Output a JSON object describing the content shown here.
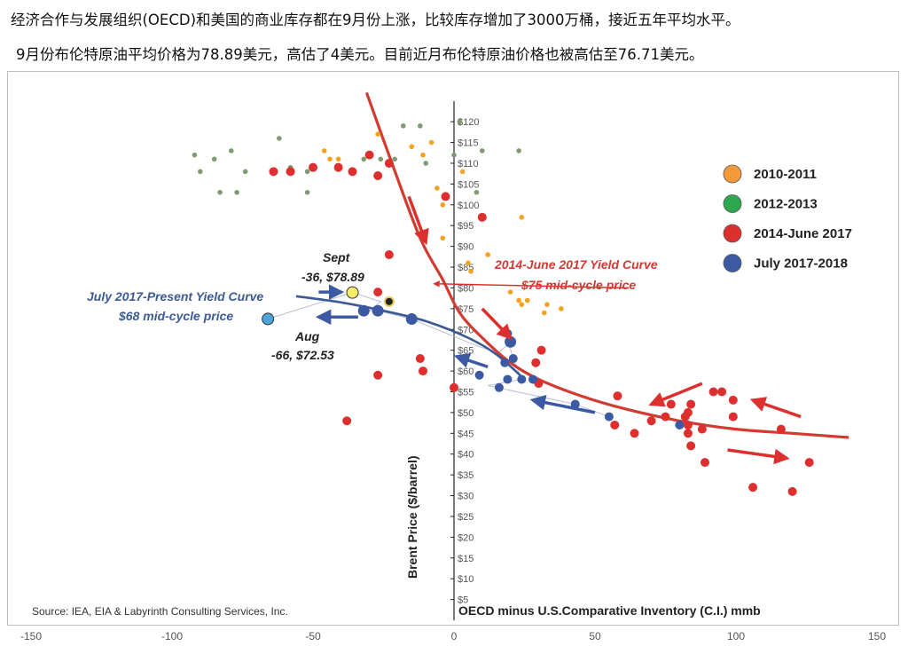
{
  "header": {
    "line1": "经济合作与发展组织(OECD)和美国的商业库存都在9月份上涨，比较库存增加了3000万桶，接近五年平均水平。",
    "line2": "9月份布伦特原油平均价格为78.89美元，高估了4美元。目前近月布伦特原油价格也被高估至76.71美元。"
  },
  "chart_data": {
    "type": "scatter",
    "xlabel": "OECD minus U.S.Comparative Inventory (C.I.) mmb",
    "ylabel": "Brent Price ($/barrel)",
    "source": "Source: IEA, EIA & Labyrinth Consulting Services, Inc.",
    "xlim": [
      -150,
      150
    ],
    "ylim": [
      0,
      125
    ],
    "x_ticks": [
      "-150",
      "-100",
      "-50",
      "0",
      "50",
      "100",
      "150"
    ],
    "y_ticks": [
      "$5",
      "$10",
      "$15",
      "$20",
      "$25",
      "$30",
      "$35",
      "$40",
      "$45",
      "$50",
      "$55",
      "$60",
      "$65",
      "$70",
      "$75",
      "$80",
      "$85",
      "$90",
      "$95",
      "$100",
      "$105",
      "$110",
      "$115",
      "$120"
    ],
    "legend_position": "right",
    "series": [
      {
        "name": "2010-2011",
        "color": "#f5a21e",
        "points": [
          [
            -46,
            113
          ],
          [
            -44,
            111
          ],
          [
            -41,
            111
          ],
          [
            -27,
            117
          ],
          [
            -15,
            114
          ],
          [
            -11,
            112
          ],
          [
            -8,
            115
          ],
          [
            -6,
            104
          ],
          [
            -4,
            100
          ],
          [
            -4,
            92
          ],
          [
            5,
            86
          ],
          [
            6,
            84
          ],
          [
            12,
            88
          ],
          [
            20,
            79
          ],
          [
            23,
            77
          ],
          [
            24,
            76
          ],
          [
            26,
            77
          ],
          [
            33,
            76
          ],
          [
            32,
            74
          ],
          [
            38,
            75
          ],
          [
            24,
            97
          ],
          [
            3,
            108
          ]
        ]
      },
      {
        "name": "2012-2013",
        "color": "#7f9b72",
        "points": [
          [
            -92,
            112
          ],
          [
            -90,
            108
          ],
          [
            -85,
            111
          ],
          [
            -83,
            103
          ],
          [
            -79,
            113
          ],
          [
            -77,
            103
          ],
          [
            -74,
            108
          ],
          [
            -62,
            116
          ],
          [
            -58,
            109
          ],
          [
            -52,
            103
          ],
          [
            -52,
            108
          ],
          [
            -32,
            111
          ],
          [
            -26,
            111
          ],
          [
            -21,
            111
          ],
          [
            -18,
            119
          ],
          [
            -12,
            119
          ],
          [
            -10,
            110
          ],
          [
            0,
            112
          ],
          [
            2,
            120
          ],
          [
            8,
            103
          ],
          [
            10,
            113
          ],
          [
            23,
            113
          ]
        ]
      },
      {
        "name": "2014-June 2017",
        "color": "#de2f2f",
        "points": [
          [
            -64,
            108
          ],
          [
            -58,
            108
          ],
          [
            -50,
            109
          ],
          [
            -41,
            109
          ],
          [
            -36,
            108
          ],
          [
            -30,
            112
          ],
          [
            -27,
            107
          ],
          [
            -23,
            110
          ],
          [
            -3,
            102
          ],
          [
            10,
            97
          ],
          [
            -23,
            88
          ],
          [
            -27,
            79
          ],
          [
            -38,
            48
          ],
          [
            -27,
            59
          ],
          [
            -12,
            63
          ],
          [
            -11,
            60
          ],
          [
            0,
            56
          ],
          [
            29,
            62
          ],
          [
            30,
            57
          ],
          [
            31,
            65
          ],
          [
            58,
            54
          ],
          [
            57,
            47
          ],
          [
            64,
            45
          ],
          [
            70,
            48
          ],
          [
            75,
            49
          ],
          [
            77,
            52
          ],
          [
            82,
            49
          ],
          [
            83,
            50
          ],
          [
            84,
            52
          ],
          [
            83,
            45
          ],
          [
            83,
            47
          ],
          [
            84,
            42
          ],
          [
            88,
            46
          ],
          [
            89,
            38
          ],
          [
            92,
            55
          ],
          [
            95,
            55
          ],
          [
            99,
            49
          ],
          [
            99,
            53
          ],
          [
            106,
            32
          ],
          [
            116,
            46
          ],
          [
            120,
            31
          ],
          [
            126,
            38
          ]
        ]
      },
      {
        "name": "July 2017-2018",
        "color": "#3b5aa3",
        "points": [
          [
            9,
            59
          ],
          [
            16,
            56
          ],
          [
            18,
            62
          ],
          [
            19,
            58
          ],
          [
            19,
            69
          ],
          [
            20,
            67
          ],
          [
            21,
            63
          ],
          [
            24,
            58
          ],
          [
            28,
            58
          ],
          [
            43,
            52
          ],
          [
            55,
            49
          ],
          [
            80,
            47
          ]
        ]
      }
    ],
    "highlights": [
      {
        "label": "Sept",
        "value_label": "-36, $78.89",
        "x": -36,
        "y": 78.89,
        "color": "#f4ec6a"
      },
      {
        "label": "Aug",
        "value_label": "-66, $72.53",
        "x": -66,
        "y": 72.53,
        "color": "#4fa3db"
      }
    ],
    "recent_path": [
      [
        -66,
        72.53
      ],
      [
        -36,
        78.89
      ],
      [
        -26,
        76.71
      ],
      [
        -30,
        74.5
      ],
      [
        -27,
        74.5
      ],
      [
        -15,
        72.5
      ],
      [
        9,
        65.8
      ],
      [
        16,
        64.5
      ],
      [
        20,
        67
      ],
      [
        18,
        70
      ],
      [
        21,
        63
      ],
      [
        24,
        58
      ],
      [
        12,
        56.5
      ],
      [
        43,
        52
      ],
      [
        55,
        49
      ]
    ],
    "curves": [
      {
        "name": "2014-June 2017 Yield Curve",
        "note": "$75 mid-cycle price",
        "color": "#d23a32",
        "points": [
          [
            -31,
            127
          ],
          [
            -22,
            110
          ],
          [
            -12,
            92
          ],
          [
            -4,
            82
          ],
          [
            2,
            74
          ],
          [
            10,
            68
          ],
          [
            20,
            62
          ],
          [
            30,
            58
          ],
          [
            45,
            54
          ],
          [
            60,
            51
          ],
          [
            80,
            48
          ],
          [
            100,
            46
          ],
          [
            120,
            45
          ],
          [
            140,
            44
          ]
        ]
      },
      {
        "name": "July 2017-Present Yield Curve",
        "note": "$68 mid-cycle price",
        "color": "#3c5a95",
        "points": [
          [
            -56,
            78
          ],
          [
            -40,
            76.5
          ],
          [
            -25,
            74.5
          ],
          [
            -10,
            72
          ],
          [
            5,
            68
          ],
          [
            15,
            64
          ],
          [
            25,
            58
          ]
        ]
      }
    ]
  }
}
